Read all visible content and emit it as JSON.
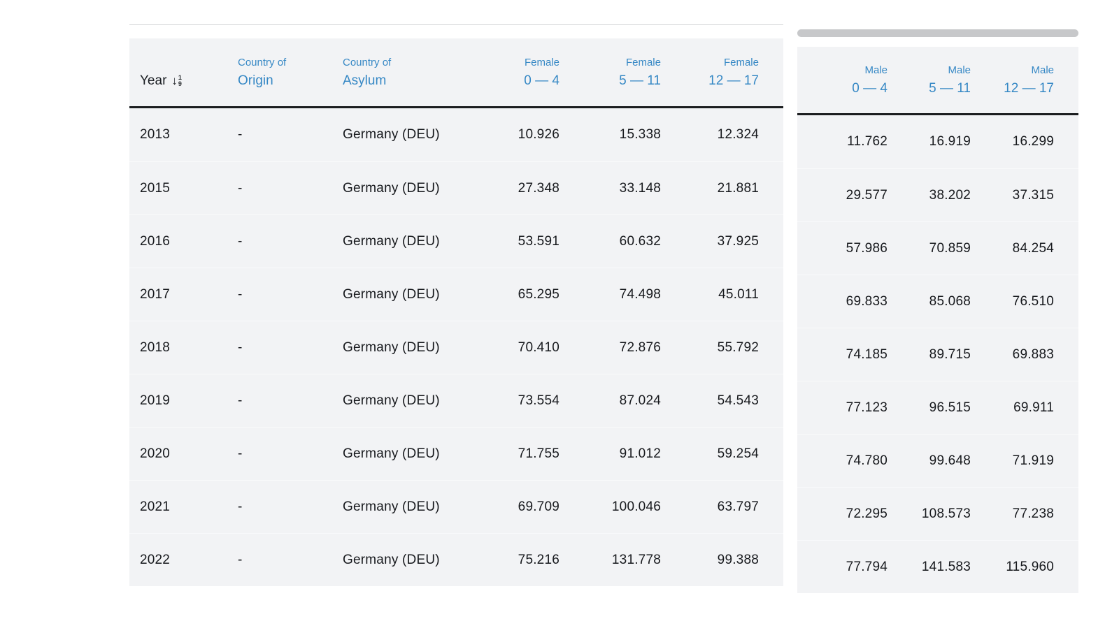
{
  "table": {
    "columns_left": [
      {
        "line1": "",
        "line2": "Year",
        "sortable": true
      },
      {
        "line1": "Country of",
        "line2": "Origin"
      },
      {
        "line1": "Country of",
        "line2": "Asylum"
      },
      {
        "line1": "Female",
        "line2": "0 — 4"
      },
      {
        "line1": "Female",
        "line2": "5 — 11"
      },
      {
        "line1": "Female",
        "line2": "12 — 17"
      }
    ],
    "columns_right": [
      {
        "line1": "Male",
        "line2": "0 — 4"
      },
      {
        "line1": "Male",
        "line2": "5 — 11"
      },
      {
        "line1": "Male",
        "line2": "12 — 17"
      }
    ],
    "sort_icon": {
      "arrow": "↓",
      "top_digit": "1",
      "bottom_digit": "9"
    },
    "rows": [
      {
        "year": "2013",
        "origin": "-",
        "asylum": "Germany (DEU)",
        "f04": "10.926",
        "f511": "15.338",
        "f1217": "12.324",
        "m04": "11.762",
        "m511": "16.919",
        "m1217": "16.299"
      },
      {
        "year": "2015",
        "origin": "-",
        "asylum": "Germany (DEU)",
        "f04": "27.348",
        "f511": "33.148",
        "f1217": "21.881",
        "m04": "29.577",
        "m511": "38.202",
        "m1217": "37.315"
      },
      {
        "year": "2016",
        "origin": "-",
        "asylum": "Germany (DEU)",
        "f04": "53.591",
        "f511": "60.632",
        "f1217": "37.925",
        "m04": "57.986",
        "m511": "70.859",
        "m1217": "84.254"
      },
      {
        "year": "2017",
        "origin": "-",
        "asylum": "Germany (DEU)",
        "f04": "65.295",
        "f511": "74.498",
        "f1217": "45.011",
        "m04": "69.833",
        "m511": "85.068",
        "m1217": "76.510"
      },
      {
        "year": "2018",
        "origin": "-",
        "asylum": "Germany (DEU)",
        "f04": "70.410",
        "f511": "72.876",
        "f1217": "55.792",
        "m04": "74.185",
        "m511": "89.715",
        "m1217": "69.883"
      },
      {
        "year": "2019",
        "origin": "-",
        "asylum": "Germany (DEU)",
        "f04": "73.554",
        "f511": "87.024",
        "f1217": "54.543",
        "m04": "77.123",
        "m511": "96.515",
        "m1217": "69.911"
      },
      {
        "year": "2020",
        "origin": "-",
        "asylum": "Germany (DEU)",
        "f04": "71.755",
        "f511": "91.012",
        "f1217": "59.254",
        "m04": "74.780",
        "m511": "99.648",
        "m1217": "71.919"
      },
      {
        "year": "2021",
        "origin": "-",
        "asylum": "Germany (DEU)",
        "f04": "69.709",
        "f511": "100.046",
        "f1217": "63.797",
        "m04": "72.295",
        "m511": "108.573",
        "m1217": "77.238"
      },
      {
        "year": "2022",
        "origin": "-",
        "asylum": "Germany (DEU)",
        "f04": "75.216",
        "f511": "131.778",
        "f1217": "99.388",
        "m04": "77.794",
        "m511": "141.583",
        "m1217": "115.960"
      }
    ],
    "colors": {
      "header_blue": "#3688c5",
      "row_background": "#f2f3f5",
      "header_border": "#1b1d1f",
      "scrollbar": "#c7c8ca"
    }
  }
}
